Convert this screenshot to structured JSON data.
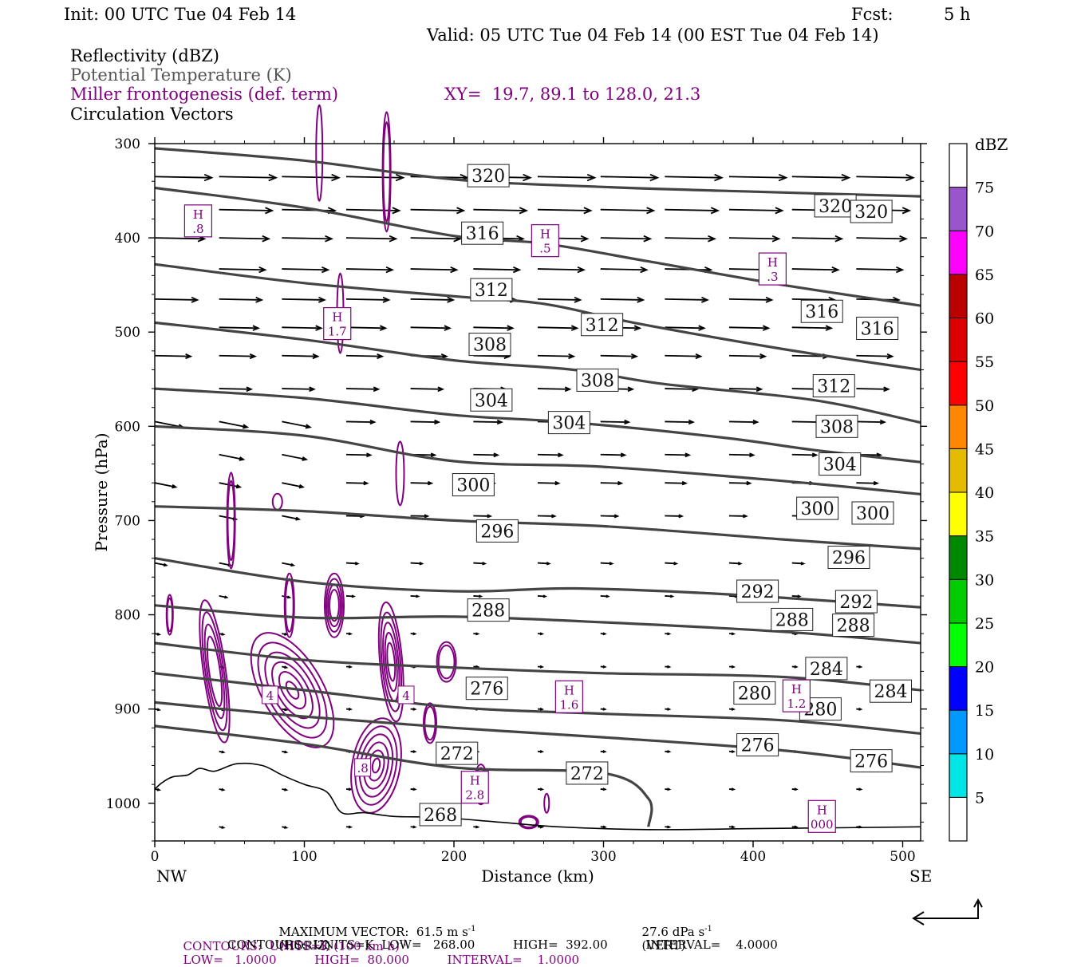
{
  "header": {
    "init": "Init: 00 UTC Tue 04 Feb 14",
    "fcst_label": "Fcst:",
    "fcst_value": "5 h",
    "valid": "Valid: 05 UTC Tue 04 Feb 14 (00 EST Tue 04 Feb 14)"
  },
  "legend_lines": {
    "reflectivity": "Reflectivity (dBZ)",
    "theta": "Potential Temperature (K)",
    "miller": "Miller frontogenesis (def. term)",
    "xy": "XY=  19.7, 89.1 to 128.0, 21.3",
    "vectors": "Circulation Vectors"
  },
  "colors": {
    "theta": "#444444",
    "frontogenesis": "#800080",
    "vectors": "#000000"
  },
  "chart_data": {
    "type": "line",
    "xlabel": "Distance (km)",
    "ylabel": "Pressure (hPa)",
    "xlim": [
      0,
      512
    ],
    "ylim": [
      1040,
      300
    ],
    "x_ticks": [
      "0",
      "100",
      "200",
      "300",
      "400",
      "500"
    ],
    "y_ticks": [
      "300",
      "400",
      "500",
      "600",
      "700",
      "800",
      "900",
      "1000"
    ],
    "x_end_labels": {
      "left": "NW",
      "right": "SE"
    },
    "theta_contours": [
      {
        "name": "320",
        "points": [
          [
            0,
            305
          ],
          [
            100,
            318
          ],
          [
            200,
            338
          ],
          [
            300,
            346
          ],
          [
            400,
            351
          ],
          [
            512,
            356
          ]
        ]
      },
      {
        "name": "316",
        "points": [
          [
            0,
            347
          ],
          [
            100,
            368
          ],
          [
            200,
            398
          ],
          [
            260,
            406
          ],
          [
            330,
            425
          ],
          [
            420,
            450
          ],
          [
            512,
            472
          ]
        ]
      },
      {
        "name": "312",
        "points": [
          [
            0,
            428
          ],
          [
            100,
            448
          ],
          [
            200,
            462
          ],
          [
            260,
            470
          ],
          [
            320,
            490
          ],
          [
            420,
            518
          ],
          [
            512,
            540
          ]
        ]
      },
      {
        "name": "308",
        "points": [
          [
            0,
            490
          ],
          [
            100,
            508
          ],
          [
            200,
            530
          ],
          [
            280,
            540
          ],
          [
            340,
            555
          ],
          [
            440,
            572
          ],
          [
            512,
            596
          ]
        ]
      },
      {
        "name": "304",
        "points": [
          [
            0,
            560
          ],
          [
            100,
            570
          ],
          [
            200,
            588
          ],
          [
            280,
            596
          ],
          [
            380,
            612
          ],
          [
            440,
            625
          ],
          [
            512,
            638
          ]
        ]
      },
      {
        "name": "300",
        "points": [
          [
            0,
            600
          ],
          [
            100,
            610
          ],
          [
            200,
            637
          ],
          [
            300,
            643
          ],
          [
            420,
            658
          ],
          [
            512,
            672
          ]
        ]
      },
      {
        "name": "296",
        "points": [
          [
            0,
            685
          ],
          [
            100,
            690
          ],
          [
            200,
            700
          ],
          [
            300,
            706
          ],
          [
            420,
            720
          ],
          [
            512,
            730
          ]
        ]
      },
      {
        "name": "292",
        "points": [
          [
            0,
            740
          ],
          [
            100,
            765
          ],
          [
            200,
            775
          ],
          [
            280,
            772
          ],
          [
            380,
            778
          ],
          [
            512,
            792
          ]
        ]
      },
      {
        "name": "288",
        "points": [
          [
            0,
            790
          ],
          [
            100,
            803
          ],
          [
            200,
            802
          ],
          [
            300,
            808
          ],
          [
            420,
            818
          ],
          [
            512,
            830
          ]
        ]
      },
      {
        "name": "284",
        "points": [
          [
            0,
            830
          ],
          [
            100,
            848
          ],
          [
            200,
            856
          ],
          [
            300,
            862
          ],
          [
            420,
            866
          ],
          [
            512,
            880
          ]
        ]
      },
      {
        "name": "280",
        "points": [
          [
            0,
            862
          ],
          [
            100,
            880
          ],
          [
            200,
            898
          ],
          [
            300,
            905
          ],
          [
            420,
            912
          ],
          [
            512,
            926
          ]
        ]
      },
      {
        "name": "276",
        "points": [
          [
            0,
            893
          ],
          [
            100,
            908
          ],
          [
            200,
            920
          ],
          [
            300,
            930
          ],
          [
            420,
            944
          ],
          [
            512,
            962
          ]
        ]
      },
      {
        "name": "272",
        "points": [
          [
            0,
            918
          ],
          [
            100,
            937
          ],
          [
            200,
            962
          ],
          [
            300,
            968
          ],
          [
            330,
            995
          ],
          [
            330,
            1025
          ]
        ]
      }
    ],
    "theta_labels": [
      {
        "text": "320",
        "x": 223,
        "p": 334
      },
      {
        "text": "320",
        "x": 455,
        "p": 366
      },
      {
        "text": "320",
        "x": 479,
        "p": 372
      },
      {
        "text": "316",
        "x": 219,
        "p": 395
      },
      {
        "text": "316",
        "x": 446,
        "p": 478
      },
      {
        "text": "316",
        "x": 483,
        "p": 496
      },
      {
        "text": "312",
        "x": 225,
        "p": 455
      },
      {
        "text": "312",
        "x": 299,
        "p": 492
      },
      {
        "text": "312",
        "x": 454,
        "p": 557
      },
      {
        "text": "308",
        "x": 224,
        "p": 513
      },
      {
        "text": "308",
        "x": 296,
        "p": 551
      },
      {
        "text": "308",
        "x": 456,
        "p": 600
      },
      {
        "text": "304",
        "x": 225,
        "p": 572
      },
      {
        "text": "304",
        "x": 277,
        "p": 596
      },
      {
        "text": "304",
        "x": 458,
        "p": 640
      },
      {
        "text": "300",
        "x": 213,
        "p": 662
      },
      {
        "text": "300",
        "x": 443,
        "p": 687
      },
      {
        "text": "300",
        "x": 480,
        "p": 692
      },
      {
        "text": "296",
        "x": 229,
        "p": 711
      },
      {
        "text": "296",
        "x": 464,
        "p": 739
      },
      {
        "text": "292",
        "x": 403,
        "p": 775
      },
      {
        "text": "292",
        "x": 469,
        "p": 786
      },
      {
        "text": "288",
        "x": 223,
        "p": 795
      },
      {
        "text": "288",
        "x": 426,
        "p": 805
      },
      {
        "text": "288",
        "x": 467,
        "p": 811
      },
      {
        "text": "284",
        "x": 449,
        "p": 857
      },
      {
        "text": "284",
        "x": 492,
        "p": 881
      },
      {
        "text": "280",
        "x": 401,
        "p": 883
      },
      {
        "text": "280",
        "x": 445,
        "p": 900
      },
      {
        "text": "276",
        "x": 222,
        "p": 878
      },
      {
        "text": "276",
        "x": 403,
        "p": 938
      },
      {
        "text": "276",
        "x": 479,
        "p": 955
      },
      {
        "text": "272",
        "x": 202,
        "p": 947
      },
      {
        "text": "272",
        "x": 289,
        "p": 968
      },
      {
        "text": "268",
        "x": 191,
        "p": 1012
      }
    ],
    "frontogenesis_labels": [
      {
        "text": "H",
        "sub": ".8",
        "x": 29,
        "p": 382
      },
      {
        "text": "H",
        "sub": ".5",
        "x": 261,
        "p": 403
      },
      {
        "text": "H",
        "sub": ".3",
        "x": 413,
        "p": 433
      },
      {
        "text": "H",
        "sub": "1.7",
        "x": 122,
        "p": 491
      },
      {
        "text": "H",
        "sub": "1.6",
        "x": 277,
        "p": 887
      },
      {
        "text": "H",
        "sub": "1.2",
        "x": 429,
        "p": 886
      },
      {
        "text": "H",
        "sub": "2.8",
        "x": 214,
        "p": 983
      },
      {
        "text": "H",
        "sub": "000",
        "x": 446,
        "p": 1014
      },
      {
        "text": "4",
        "x": 77,
        "p": 885
      },
      {
        "text": "4",
        "x": 168,
        "p": 885
      },
      {
        "text": ".8",
        "x": 139,
        "p": 962
      }
    ]
  },
  "colorbar": {
    "unit": "dBZ",
    "levels": [
      "5",
      "10",
      "15",
      "20",
      "25",
      "30",
      "35",
      "40",
      "45",
      "50",
      "55",
      "60",
      "65",
      "70",
      "75"
    ],
    "colors": [
      "#00e5e5",
      "#0099ff",
      "#0000ff",
      "#00ff00",
      "#00cc00",
      "#008800",
      "#ffff00",
      "#e5bb00",
      "#ff8800",
      "#ff0000",
      "#dd0000",
      "#bb0000",
      "#ff00ff",
      "#9955cc",
      "#ffffff"
    ]
  },
  "footer": {
    "max_vector_label": "MAXIMUM VECTOR:  61.5 m s",
    "horiz_tag": "(HORIZ)",
    "vert_value": "27.6 dPa s",
    "vert_tag": "(VERT)",
    "exp": "-1",
    "contours1_a": "CONTOURS:  UNITS=K (100 km h)",
    "contours1_b": "LOW=   1.0000          HIGH=  80.000          INTERVAL=    1.0000",
    "contours2": "CONTOURS:  UNITS=K  LOW=   268.00          HIGH=  392.00          INTERVAL=    4.0000"
  }
}
